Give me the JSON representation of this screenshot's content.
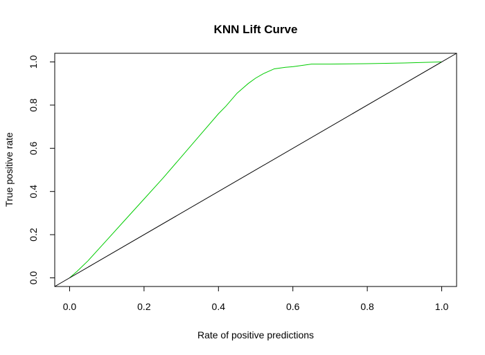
{
  "chart_data": {
    "type": "line",
    "title": "KNN Lift Curve",
    "xlabel": "Rate of positive predictions",
    "ylabel": "True positive rate",
    "xlim": [
      -0.04,
      1.04
    ],
    "ylim": [
      -0.04,
      1.04
    ],
    "x_ticks": [
      "0.0",
      "0.2",
      "0.4",
      "0.6",
      "0.8",
      "1.0"
    ],
    "y_ticks": [
      "0.0",
      "0.2",
      "0.4",
      "0.6",
      "0.8",
      "1.0"
    ],
    "grid": false,
    "legend": false,
    "series": [
      {
        "color": "#00cc00",
        "x": [
          0.0,
          0.02,
          0.05,
          0.1,
          0.15,
          0.2,
          0.25,
          0.3,
          0.35,
          0.4,
          0.42,
          0.45,
          0.48,
          0.5,
          0.52,
          0.55,
          0.58,
          0.6,
          0.65,
          0.7,
          0.8,
          0.9,
          1.0
        ],
        "y": [
          0.0,
          0.03,
          0.08,
          0.175,
          0.27,
          0.365,
          0.46,
          0.56,
          0.66,
          0.76,
          0.795,
          0.855,
          0.9,
          0.925,
          0.945,
          0.968,
          0.975,
          0.978,
          0.99,
          0.99,
          0.992,
          0.995,
          1.0
        ]
      },
      {
        "color": "#000000",
        "x": [
          -0.04,
          1.04
        ],
        "y": [
          -0.04,
          1.04
        ]
      }
    ]
  }
}
